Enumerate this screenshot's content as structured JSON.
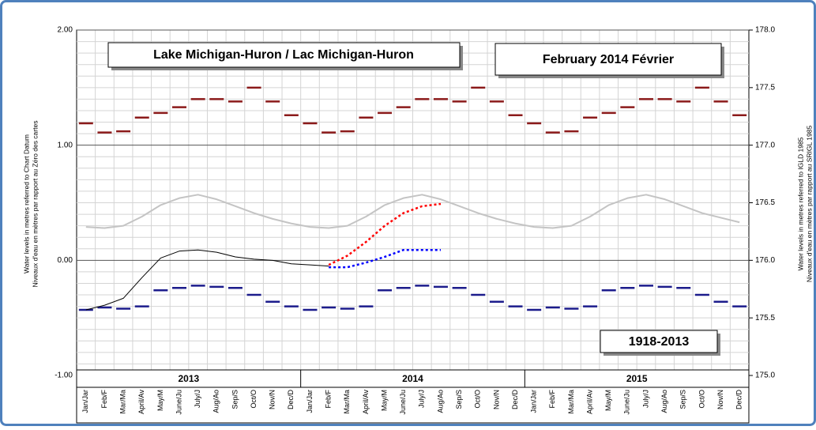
{
  "chart_data": {
    "type": "line",
    "title": "Lake Michigan-Huron / Lac Michigan-Huron",
    "subtitle": "February 2014 Février",
    "annotation": "1918-2013",
    "ylabel": [
      "Water levels in metres referred to Chart Datum",
      "Niveaux d'eau en mètres par rapport au Zéro des cartes"
    ],
    "y2label": [
      "Water levels in metres referred to IGLD 1985",
      "Niveaux d'eau en mètres par rapport au SRIGL 1985"
    ],
    "years": [
      "2013",
      "2014",
      "2015"
    ],
    "categories": [
      "Jan/Jar",
      "Feb/F",
      "Mar/Ma",
      "April/Av",
      "May/M",
      "June/Ju",
      "July/J",
      "Aug/Ao",
      "Sep/S",
      "Oct/O",
      "Nov/N",
      "Dec/D",
      "Jan/Jar",
      "Feb/F",
      "Mar/Ma",
      "April/Av",
      "May/M",
      "June/Ju",
      "July/J",
      "Aug/Ao",
      "Sep/S",
      "Oct/O",
      "Nov/N",
      "Dec/D",
      "Jan/Jar",
      "Feb/F",
      "Mar/Ma",
      "April/Av",
      "May/M",
      "June/Ju",
      "July/J",
      "Aug/Ao",
      "Sep/S",
      "Oct/O",
      "Nov/N",
      "Dec/D"
    ],
    "ylim": [
      -1,
      2
    ],
    "yticks": [
      {
        "value": -1,
        "label": "-1.00"
      },
      {
        "value": 0,
        "label": "0.00"
      },
      {
        "value": 1,
        "label": "1.00"
      },
      {
        "value": 2,
        "label": "2.00"
      }
    ],
    "yminorticks": [
      -0.9,
      -0.8,
      -0.7,
      -0.6,
      -0.5,
      -0.4,
      -0.3,
      -0.2,
      -0.1,
      0.1,
      0.2,
      0.3,
      0.4,
      0.5,
      0.6,
      0.7,
      0.8,
      0.9,
      1.1,
      1.2,
      1.3,
      1.4,
      1.5,
      1.6,
      1.7,
      1.8,
      1.9
    ],
    "y2lim": [
      175,
      178
    ],
    "y2ticks": [
      {
        "value": 175,
        "label": "175.0"
      },
      175.5,
      {
        "value": 176,
        "label": "176.0"
      },
      176.5,
      {
        "value": 177,
        "label": "177.0"
      },
      177.5,
      {
        "value": 178,
        "label": "178.0"
      }
    ],
    "grid": true,
    "series": [
      {
        "mark": "dash",
        "color": "#8b1a1a",
        "values": [
          1.19,
          1.11,
          1.12,
          1.24,
          1.28,
          1.33,
          1.4,
          1.4,
          1.38,
          1.5,
          1.38,
          1.26,
          1.19,
          1.11,
          1.12,
          1.24,
          1.28,
          1.33,
          1.4,
          1.4,
          1.38,
          1.5,
          1.38,
          1.26,
          1.19,
          1.11,
          1.12,
          1.24,
          1.28,
          1.33,
          1.4,
          1.4,
          1.38,
          1.5,
          1.38,
          1.26
        ]
      },
      {
        "mark": "dash",
        "color": "#1c1c8c",
        "values": [
          -0.43,
          -0.41,
          -0.42,
          -0.4,
          -0.26,
          -0.24,
          -0.22,
          -0.23,
          -0.24,
          -0.3,
          -0.36,
          -0.4,
          -0.43,
          -0.41,
          -0.42,
          -0.4,
          -0.26,
          -0.24,
          -0.22,
          -0.23,
          -0.24,
          -0.3,
          -0.36,
          -0.4,
          -0.43,
          -0.41,
          -0.42,
          -0.4,
          -0.26,
          -0.24,
          -0.22,
          -0.23,
          -0.24,
          -0.3,
          -0.36,
          -0.4
        ]
      },
      {
        "mark": "line",
        "color": "#c4c4c4",
        "values": [
          0.29,
          0.28,
          0.3,
          0.38,
          0.48,
          0.54,
          0.57,
          0.53,
          0.47,
          0.41,
          0.36,
          0.32,
          0.29,
          0.28,
          0.3,
          0.38,
          0.48,
          0.54,
          0.57,
          0.53,
          0.47,
          0.41,
          0.36,
          0.32,
          0.29,
          0.28,
          0.3,
          0.38,
          0.48,
          0.54,
          0.57,
          0.53,
          0.47,
          0.41,
          0.37,
          0.33
        ]
      },
      {
        "mark": "line",
        "color": "#000000",
        "values": [
          -0.43,
          -0.39,
          -0.33,
          -0.15,
          0.02,
          0.08,
          0.09,
          0.07,
          0.03,
          0.01,
          0.0,
          -0.03,
          -0.04,
          -0.05,
          null,
          null,
          null,
          null,
          null,
          null,
          null,
          null,
          null,
          null,
          null,
          null,
          null,
          null,
          null,
          null,
          null,
          null,
          null,
          null,
          null,
          null
        ]
      },
      {
        "mark": "dotted",
        "color": "#ff0000",
        "values": [
          null,
          null,
          null,
          null,
          null,
          null,
          null,
          null,
          null,
          null,
          null,
          null,
          null,
          -0.04,
          0.04,
          0.16,
          0.3,
          0.41,
          0.47,
          0.49,
          null,
          null,
          null,
          null,
          null,
          null,
          null,
          null,
          null,
          null,
          null,
          null,
          null,
          null,
          null,
          null
        ]
      },
      {
        "mark": "dotted",
        "color": "#0000ff",
        "values": [
          null,
          null,
          null,
          null,
          null,
          null,
          null,
          null,
          null,
          null,
          null,
          null,
          null,
          -0.06,
          -0.06,
          -0.02,
          0.03,
          0.09,
          0.09,
          0.09,
          null,
          null,
          null,
          null,
          null,
          null,
          null,
          null,
          null,
          null,
          null,
          null,
          null,
          null,
          null,
          null
        ]
      }
    ]
  }
}
